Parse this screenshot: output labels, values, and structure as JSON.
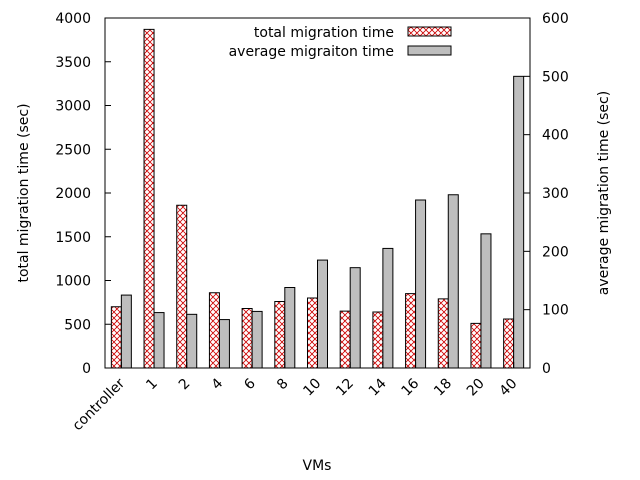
{
  "chart_data": {
    "type": "bar",
    "xlabel": "VMs",
    "ylabel_left": "total migration time (sec)",
    "ylabel_right": "average migration time (sec)",
    "categories": [
      "controller",
      "1",
      "2",
      "4",
      "6",
      "8",
      "10",
      "12",
      "14",
      "16",
      "18",
      "20",
      "40"
    ],
    "ylim_left": [
      0,
      4000
    ],
    "ylim_right": [
      0,
      600
    ],
    "yticks_left": [
      "0",
      "500",
      "1000",
      "1500",
      "2000",
      "2500",
      "3000",
      "3500",
      "4000"
    ],
    "yticks_right": [
      "0",
      "100",
      "200",
      "300",
      "400",
      "500",
      "600"
    ],
    "legend_position": "top-right",
    "grid": false,
    "series": [
      {
        "name": "total migration time",
        "axis": "left",
        "style": "red-crosshatch",
        "color": "#cc0000",
        "values": [
          700,
          3870,
          1860,
          860,
          680,
          760,
          800,
          650,
          640,
          850,
          790,
          510,
          560
        ]
      },
      {
        "name": "average migraiton time",
        "axis": "right",
        "style": "gray-fill",
        "color": "#bebebe",
        "values": [
          125,
          95,
          92,
          83,
          97,
          138,
          185,
          172,
          205,
          288,
          297,
          230,
          500
        ]
      }
    ]
  }
}
